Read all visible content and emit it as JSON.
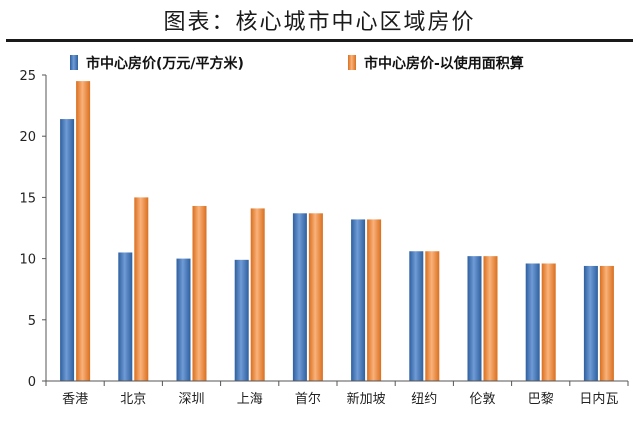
{
  "chart_data": {
    "type": "bar",
    "title": "图表：核心城市中心区域房价",
    "categories": [
      "香港",
      "北京",
      "深圳",
      "上海",
      "首尔",
      "新加坡",
      "纽约",
      "伦敦",
      "巴黎",
      "日内瓦"
    ],
    "series": [
      {
        "name": "市中心房价(万元/平方米)",
        "values": [
          21.4,
          10.5,
          10.0,
          9.9,
          13.7,
          13.2,
          10.6,
          10.2,
          9.6,
          9.4
        ]
      },
      {
        "name": "市中心房价-以使用面积算",
        "values": [
          24.5,
          15.0,
          14.3,
          14.1,
          13.7,
          13.2,
          10.6,
          10.2,
          9.6,
          9.4
        ]
      }
    ],
    "ylim": [
      0,
      25
    ],
    "yticks": [
      0,
      5,
      10,
      15,
      20,
      25
    ],
    "legend": "top",
    "grid": false,
    "colors": {
      "series1": "#4f81bd",
      "series1_dark": "#2e5f9e",
      "series2": "#f79646",
      "series2_dark": "#d96f1f"
    }
  }
}
